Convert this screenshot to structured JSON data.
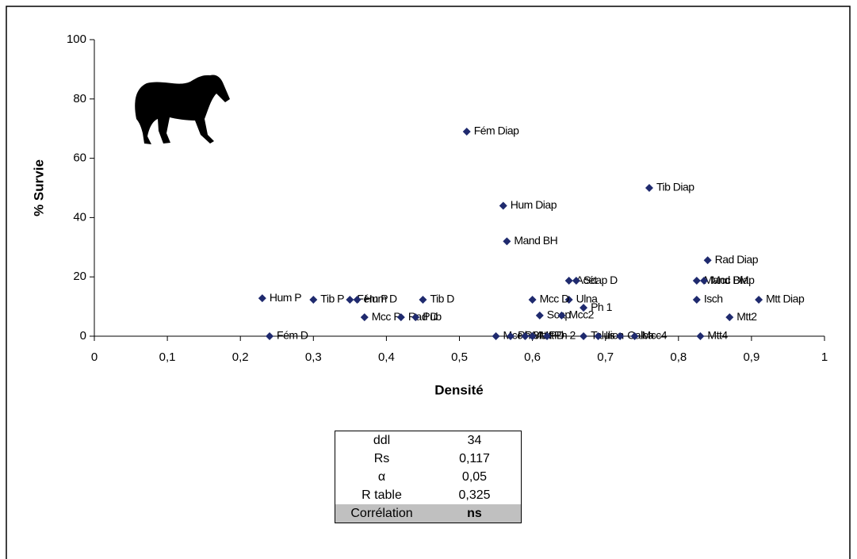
{
  "chart_data": {
    "type": "scatter",
    "x_label": "Densité",
    "y_label": "% Survie",
    "color": "#1f2a6e",
    "labels": [
      "Fém Diap",
      "Tib Diap",
      "Hum Diap",
      "Mand BH",
      "Rad Diap",
      "Acét",
      "Scap D",
      "Mand BM",
      "Mcc Diap",
      "Mtt Diap",
      "Isch",
      "Mtt2",
      "Ulna",
      "Mcc D",
      "Ph 1",
      "Scap",
      "Mcc2",
      "Mcc P",
      "Ph 3",
      "Mtt P",
      "Mtt D",
      "Ph 2",
      "Talus",
      "Ilion",
      "Calca",
      "Mcc4",
      "Mtt4",
      "Fém D",
      "Hum P",
      "Tib P",
      "Fém P",
      "Hum D",
      "Mcc P",
      "Rad D",
      "Tib D",
      "Pub"
    ],
    "x": [
      0.51,
      0.76,
      0.56,
      0.565,
      0.84,
      0.65,
      0.66,
      0.825,
      0.835,
      0.91,
      0.825,
      0.87,
      0.65,
      0.6,
      0.67,
      0.61,
      0.64,
      0.55,
      0.57,
      0.59,
      0.6,
      0.62,
      0.67,
      0.69,
      0.72,
      0.74,
      0.83,
      0.24,
      0.23,
      0.3,
      0.35,
      0.36,
      0.37,
      0.42,
      0.45,
      0.44
    ],
    "values": [
      69,
      50,
      44,
      32,
      25.6,
      18.7,
      18.7,
      18.7,
      18.7,
      12.3,
      12.3,
      6.4,
      12.3,
      12.3,
      9.6,
      7,
      7,
      0,
      0,
      0,
      0,
      0,
      0,
      0,
      0,
      0,
      0,
      0,
      12.8,
      12.3,
      12.3,
      12.3,
      6.4,
      6.4,
      12.3,
      6.4
    ],
    "xlim": [
      0,
      1
    ],
    "ylim": [
      0,
      100
    ],
    "xticks": [
      0,
      {
        "value": 0.1,
        "label": "0,1"
      },
      {
        "value": 0.2,
        "label": "0,2"
      },
      {
        "value": 0.3,
        "label": "0,3"
      },
      {
        "value": 0.4,
        "label": "0,4"
      },
      {
        "value": 0.5,
        "label": "0,5"
      },
      {
        "value": 0.6,
        "label": "0,6"
      },
      {
        "value": 0.7,
        "label": "0,7"
      },
      {
        "value": 0.8,
        "label": "0,8"
      },
      {
        "value": 0.9,
        "label": "0,9"
      },
      1
    ],
    "yticks": [
      0,
      20,
      40,
      60,
      80,
      100
    ]
  },
  "table": {
    "rows": [
      [
        "ddl",
        "34"
      ],
      [
        "Rs",
        "0,117"
      ],
      [
        "α",
        "0,05"
      ],
      [
        "R table",
        "0,325"
      ],
      [
        "Corrélation",
        "ns"
      ]
    ]
  }
}
